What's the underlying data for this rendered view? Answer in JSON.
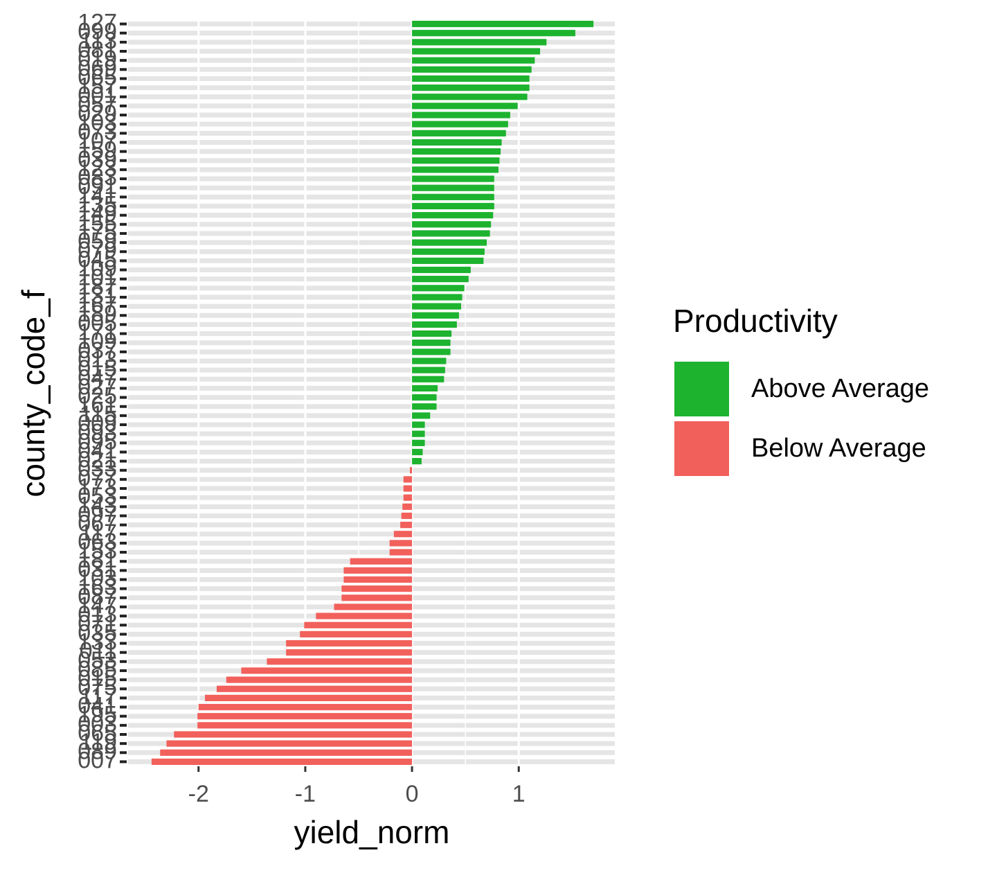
{
  "chart_data": {
    "type": "bar",
    "orientation": "horizontal",
    "x_label": "yield_norm",
    "y_label": "county_code_f",
    "legend": {
      "title": "Productivity",
      "position": "right",
      "entries": [
        {
          "name": "Above Average",
          "color": "#1db32f"
        },
        {
          "name": "Below Average",
          "color": "#f2605b"
        }
      ]
    },
    "categories": [
      "127",
      "099",
      "113",
      "081",
      "019",
      "069",
      "065",
      "157",
      "001",
      "057",
      "029",
      "103",
      "073",
      "107",
      "159",
      "039",
      "123",
      "083",
      "091",
      "141",
      "135",
      "149",
      "155",
      "175",
      "059",
      "079",
      "045",
      "109",
      "101",
      "187",
      "131",
      "167",
      "189",
      "005",
      "171",
      "109",
      "037",
      "013",
      "015",
      "047",
      "027",
      "025",
      "161",
      "115",
      "009",
      "093",
      "095",
      "041",
      "021",
      "033",
      "077",
      "173",
      "053",
      "143",
      "097",
      "067",
      "117",
      "063",
      "153",
      "181",
      "031",
      "103",
      "163",
      "087",
      "147",
      "013",
      "071",
      "035",
      "133",
      "011",
      "053",
      "085",
      "015",
      "075",
      "117",
      "041",
      "195",
      "003",
      "065",
      "119",
      "089",
      "007"
    ],
    "values": [
      1.7,
      1.53,
      1.26,
      1.2,
      1.15,
      1.12,
      1.1,
      1.1,
      1.08,
      0.99,
      0.92,
      0.9,
      0.88,
      0.84,
      0.83,
      0.82,
      0.81,
      0.77,
      0.77,
      0.77,
      0.77,
      0.76,
      0.74,
      0.73,
      0.7,
      0.68,
      0.67,
      0.55,
      0.53,
      0.49,
      0.47,
      0.46,
      0.44,
      0.42,
      0.37,
      0.36,
      0.36,
      0.32,
      0.31,
      0.3,
      0.24,
      0.23,
      0.23,
      0.17,
      0.12,
      0.12,
      0.12,
      0.1,
      0.09,
      -0.02,
      -0.08,
      -0.08,
      -0.08,
      -0.09,
      -0.1,
      -0.11,
      -0.17,
      -0.21,
      -0.21,
      -0.58,
      -0.64,
      -0.64,
      -0.66,
      -0.66,
      -0.73,
      -0.9,
      -1.01,
      -1.05,
      -1.18,
      -1.18,
      -1.36,
      -1.6,
      -1.74,
      -1.83,
      -1.94,
      -2.0,
      -2.01,
      -2.01,
      -2.23,
      -2.3,
      -2.36,
      -2.44
    ],
    "xlim": [
      -2.66,
      1.9
    ],
    "xticks": [
      -2,
      -1,
      0,
      1
    ],
    "grid": true
  }
}
